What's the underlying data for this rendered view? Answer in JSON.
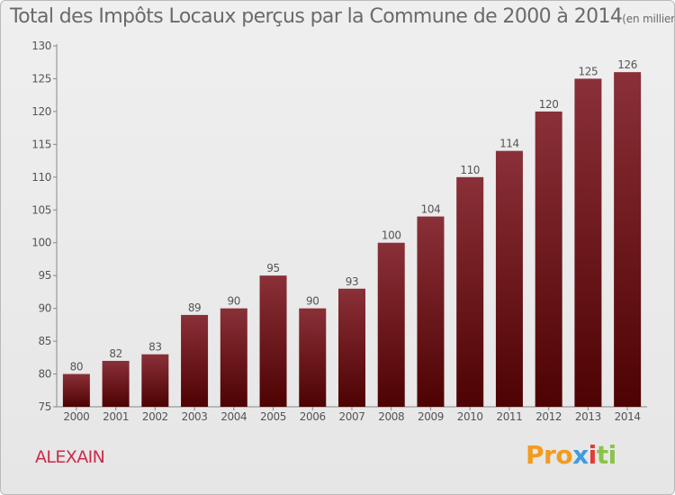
{
  "chart_data": {
    "type": "bar",
    "title": "Total des Impôts Locaux perçus par la Commune de 2000 à 2014",
    "unit": "(en milliers d'€)",
    "categories": [
      "2000",
      "2001",
      "2002",
      "2003",
      "2004",
      "2005",
      "2006",
      "2007",
      "2008",
      "2009",
      "2010",
      "2011",
      "2012",
      "2013",
      "2014"
    ],
    "values": [
      80,
      82,
      83,
      89,
      90,
      95,
      90,
      93,
      100,
      104,
      110,
      114,
      120,
      125,
      126
    ],
    "ylim": [
      75,
      130
    ],
    "yticks": [
      75,
      80,
      85,
      90,
      95,
      100,
      105,
      110,
      115,
      120,
      125,
      130
    ],
    "xlabel": "",
    "ylabel": "",
    "bar_color_top": "#8a3038",
    "bar_color_bottom": "#4e0202",
    "axis_color": "#888888"
  },
  "footer": {
    "commune": "ALEXAIN",
    "logo": {
      "p1": "Pro",
      "p2": "x",
      "p3": "i",
      "p4": "ti"
    }
  }
}
